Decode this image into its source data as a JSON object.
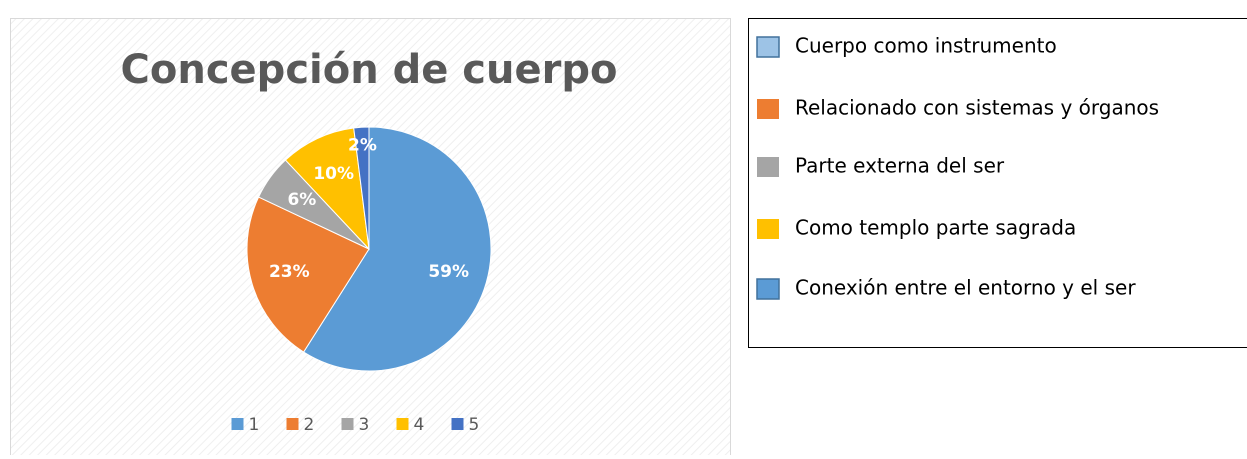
{
  "chart_data": {
    "type": "pie",
    "title": "Concepción de cuerpo",
    "categories": [
      "1",
      "2",
      "3",
      "4",
      "5"
    ],
    "values": [
      59,
      23,
      6,
      10,
      2
    ],
    "value_labels": [
      "59%",
      "23%",
      "6%",
      "10%",
      "2%"
    ],
    "colors": [
      "#5b9bd5",
      "#ed7d31",
      "#a5a5a5",
      "#ffc000",
      "#4472c4"
    ],
    "legend": "bottom"
  },
  "legend_box": {
    "items": [
      {
        "label": "Cuerpo como instrumento",
        "color": "#9dc3e6"
      },
      {
        "label": "Relacionado con sistemas y órganos",
        "color": "#ed7d31"
      },
      {
        "label": "Parte externa del ser",
        "color": "#a5a5a5"
      },
      {
        "label": "Como templo parte sagrada",
        "color": "#ffc000"
      },
      {
        "label": "Conexión entre el entorno y el ser",
        "color": "#5b9bd5"
      }
    ]
  }
}
